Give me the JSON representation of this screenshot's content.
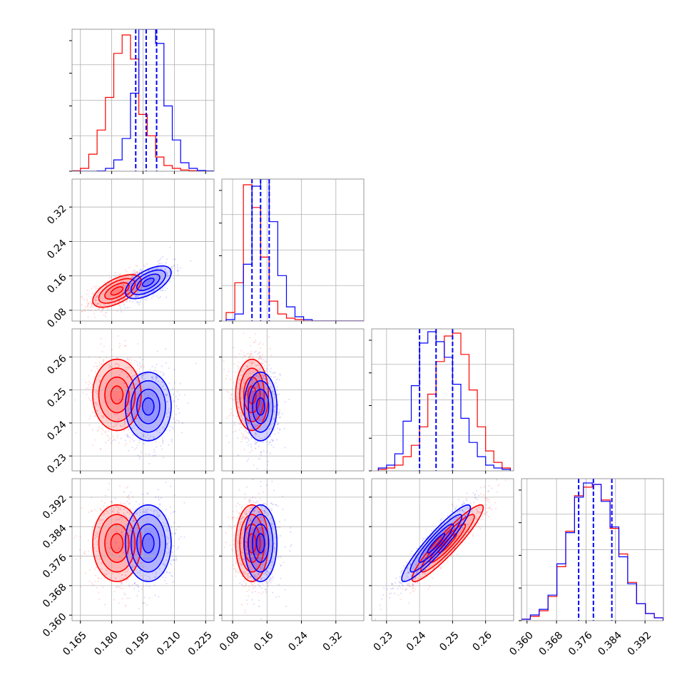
{
  "colors": {
    "red": "#ff0000",
    "blue": "#0000ff",
    "grid": "#b0b0b0",
    "frame": "#808080"
  },
  "parameters": [
    {
      "range": [
        0.161,
        0.229
      ],
      "ticks": [
        "0.165",
        "0.180",
        "0.195",
        "0.210",
        "0.225"
      ]
    },
    {
      "range": [
        0.055,
        0.385
      ],
      "ticks": [
        "0.08",
        "0.16",
        "0.24",
        "0.32"
      ]
    },
    {
      "range": [
        0.2255,
        0.2685
      ],
      "ticks": [
        "0.23",
        "0.24",
        "0.25",
        "0.26"
      ]
    },
    {
      "range": [
        0.3585,
        0.397
      ],
      "ticks": [
        "0.360",
        "0.368",
        "0.376",
        "0.384",
        "0.392"
      ]
    }
  ],
  "chart_data": {
    "type": "scatter",
    "series": [
      {
        "color": "red",
        "means": [
          0.1825,
          0.125,
          0.2485,
          0.3795
        ],
        "sigmas": [
          0.0058,
          0.019,
          0.0054,
          0.0052
        ],
        "correlations": {
          "0-1": 0.6,
          "0-2": 0.0,
          "0-3": 0.0,
          "1-2": 0.0,
          "1-3": 0.0,
          "2-3": 0.93
        },
        "histograms": [
          {
            "edges": [
              0.161,
              0.165,
              0.169,
              0.173,
              0.177,
              0.181,
              0.185,
              0.189,
              0.193,
              0.197,
              0.201,
              0.205,
              0.209,
              0.213,
              0.217,
              0.221,
              0.225,
              0.229
            ],
            "counts": [
              0.003,
              0.02,
              0.12,
              0.29,
              0.52,
              0.83,
              0.96,
              0.79,
              0.4,
              0.25,
              0.1,
              0.04,
              0.02,
              0.008,
              0.004,
              0.002,
              0.0
            ]
          },
          {
            "edges": [
              0.065,
              0.085,
              0.105,
              0.125,
              0.145,
              0.165,
              0.185,
              0.205,
              0.225,
              0.245,
              0.265,
              0.285,
              0.305,
              0.325,
              0.345,
              0.365,
              0.385
            ],
            "counts": [
              0.06,
              0.27,
              0.96,
              0.8,
              0.45,
              0.14,
              0.05,
              0.02,
              0.01,
              0.0,
              0.0,
              0.0,
              0.0,
              0.0,
              0.0,
              0.0
            ]
          },
          {
            "edges": [
              0.2275,
              0.23,
              0.2325,
              0.235,
              0.2375,
              0.24,
              0.2425,
              0.245,
              0.2475,
              0.25,
              0.2525,
              0.255,
              0.2575,
              0.26,
              0.2625,
              0.265,
              0.2675
            ],
            "counts": [
              0.01,
              0.02,
              0.04,
              0.1,
              0.18,
              0.31,
              0.54,
              0.77,
              0.95,
              0.97,
              0.82,
              0.57,
              0.31,
              0.14,
              0.06,
              0.02
            ]
          },
          {
            "edges": [
              0.3585,
              0.3609,
              0.3633,
              0.3657,
              0.3681,
              0.3705,
              0.3729,
              0.3753,
              0.3777,
              0.3801,
              0.3825,
              0.3849,
              0.3873,
              0.3897,
              0.3921,
              0.3945,
              0.3969
            ],
            "counts": [
              0.01,
              0.03,
              0.07,
              0.17,
              0.38,
              0.63,
              0.88,
              0.94,
              0.96,
              0.85,
              0.65,
              0.47,
              0.27,
              0.12,
              0.05,
              0.02
            ]
          }
        ]
      },
      {
        "color": "blue",
        "means": [
          0.1975,
          0.145,
          0.245,
          0.3795
        ],
        "sigmas": [
          0.0055,
          0.019,
          0.0052,
          0.0052
        ],
        "correlations": {
          "0-1": 0.6,
          "0-2": 0.0,
          "0-3": 0.0,
          "1-2": 0.0,
          "1-3": 0.0,
          "2-3": 0.93
        },
        "histograms": [
          {
            "edges": [
              0.161,
              0.165,
              0.169,
              0.173,
              0.177,
              0.181,
              0.185,
              0.189,
              0.193,
              0.197,
              0.201,
              0.205,
              0.209,
              0.213,
              0.217,
              0.221,
              0.225,
              0.229
            ],
            "counts": [
              0.0,
              0.0,
              0.0,
              0.002,
              0.02,
              0.08,
              0.23,
              0.55,
              1.0,
              1.0,
              0.9,
              0.46,
              0.22,
              0.06,
              0.02,
              0.005,
              0.002
            ]
          },
          {
            "edges": [
              0.065,
              0.085,
              0.105,
              0.125,
              0.145,
              0.165,
              0.185,
              0.205,
              0.225,
              0.245,
              0.265,
              0.285,
              0.305,
              0.325,
              0.345,
              0.365,
              0.385
            ],
            "counts": [
              0.01,
              0.05,
              0.4,
              0.95,
              1.0,
              0.7,
              0.32,
              0.1,
              0.03,
              0.01,
              0.0,
              0.0,
              0.0,
              0.0,
              0.0,
              0.0
            ]
          },
          {
            "edges": [
              0.2275,
              0.23,
              0.2325,
              0.235,
              0.2375,
              0.24,
              0.2425,
              0.245,
              0.2475,
              0.25,
              0.2525,
              0.255,
              0.2575,
              0.26,
              0.2625,
              0.265,
              0.2675
            ],
            "counts": [
              0.02,
              0.04,
              0.12,
              0.35,
              0.6,
              0.9,
              0.98,
              0.91,
              0.8,
              0.61,
              0.37,
              0.2,
              0.1,
              0.04,
              0.02,
              0.01
            ]
          },
          {
            "edges": [
              0.3585,
              0.3609,
              0.3633,
              0.3657,
              0.3681,
              0.3705,
              0.3729,
              0.3753,
              0.3777,
              0.3801,
              0.3825,
              0.3849,
              0.3873,
              0.3897,
              0.3921,
              0.3945,
              0.3969
            ],
            "counts": [
              0.01,
              0.04,
              0.08,
              0.18,
              0.4,
              0.62,
              0.87,
              0.97,
              0.96,
              0.84,
              0.66,
              0.45,
              0.26,
              0.12,
              0.05,
              0.02
            ]
          }
        ]
      }
    ],
    "quantile_lines": {
      "color": "blue",
      "values": [
        [
          0.1915,
          0.1965,
          0.2015
        ],
        [
          0.125,
          0.145,
          0.165
        ],
        [
          0.24,
          0.245,
          0.25
        ],
        [
          0.374,
          0.378,
          0.383
        ]
      ]
    },
    "contour_levels_sigma": [
      0.5,
      1.0,
      1.5,
      2.0
    ],
    "grid": true
  }
}
